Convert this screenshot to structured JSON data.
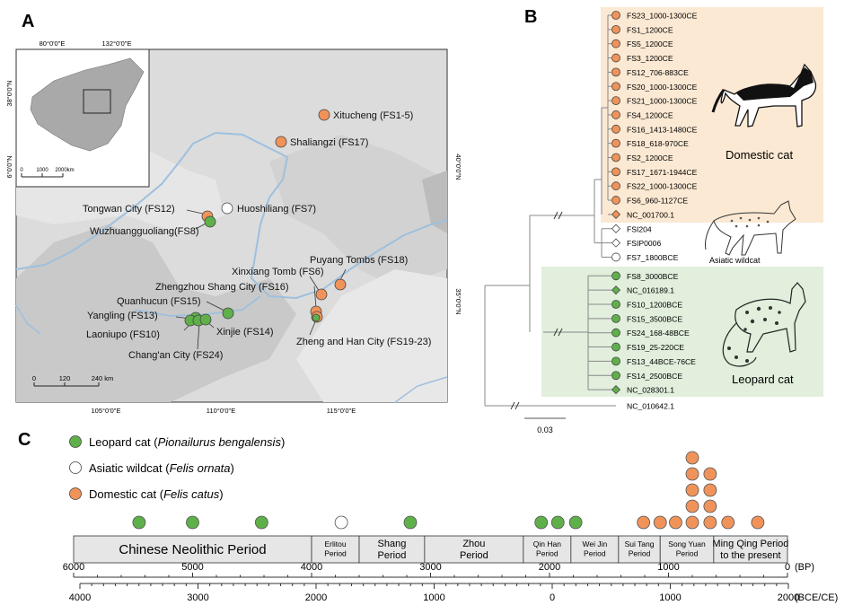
{
  "panels": {
    "a": "A",
    "b": "B",
    "c": "C"
  },
  "map": {
    "inset": {
      "lon_labels": [
        "80°0'0\"E",
        "132°0'0\"E"
      ],
      "lat_labels": [
        "38°0'0\"N",
        "6°0'0\"N"
      ],
      "scale": [
        "0",
        "1000",
        "2000km"
      ]
    },
    "lon_labels": [
      "105°0'0\"E",
      "110°0'0\"E",
      "115°0'0\"E"
    ],
    "lat_labels": [
      "40°0'0\"N",
      "35°0'0\"N"
    ],
    "scale": [
      "0",
      "120",
      "240 km"
    ],
    "sites": [
      {
        "label": "Xitucheng (FS1-5)",
        "type": "domestic"
      },
      {
        "label": "Shaliangzi (FS17)",
        "type": "domestic"
      },
      {
        "label": "Tongwan City (FS12)",
        "type": "domestic"
      },
      {
        "label": "Huoshiliang (FS7)",
        "type": "wildcat"
      },
      {
        "label": "Wuzhuangguoliang(FS8)",
        "type": "leopard"
      },
      {
        "label": "Puyang Tombs (FS18)",
        "type": "domestic"
      },
      {
        "label": "Xinxiang Tomb (FS6)",
        "type": "domestic"
      },
      {
        "label": "Zhengzhou Shang City (FS16)",
        "type": "domestic"
      },
      {
        "label": "Quanhucun (FS15)",
        "type": "leopard"
      },
      {
        "label": "Yangling (FS13)",
        "type": "leopard"
      },
      {
        "label": "Laoniupo (FS10)",
        "type": "leopard"
      },
      {
        "label": "Xinjie (FS14)",
        "type": "leopard"
      },
      {
        "label": "Chang'an City (FS24)",
        "type": "leopard"
      },
      {
        "label": "Zheng and Han City (FS19-23)",
        "type": "domestic"
      }
    ]
  },
  "tree": {
    "tips": [
      {
        "label": "FS23_1000-1300CE",
        "type": "domestic"
      },
      {
        "label": "FS1_1200CE",
        "type": "domestic"
      },
      {
        "label": "FS5_1200CE",
        "type": "domestic"
      },
      {
        "label": "FS3_1200CE",
        "type": "domestic"
      },
      {
        "label": "FS12_706-883CE",
        "type": "domestic"
      },
      {
        "label": "FS20_1000-1300CE",
        "type": "domestic"
      },
      {
        "label": "FS21_1000-1300CE",
        "type": "domestic"
      },
      {
        "label": "FS4_1200CE",
        "type": "domestic"
      },
      {
        "label": "FS16_1413-1480CE",
        "type": "domestic"
      },
      {
        "label": "FS18_618-970CE",
        "type": "domestic"
      },
      {
        "label": "FS2_1200CE",
        "type": "domestic"
      },
      {
        "label": "FS17_1671-1944CE",
        "type": "domestic"
      },
      {
        "label": "FS22_1000-1300CE",
        "type": "domestic"
      },
      {
        "label": "FS6_960-1127CE",
        "type": "domestic"
      },
      {
        "label": "NC_001700.1",
        "type": "domestic-ref"
      },
      {
        "label": "FSI204",
        "type": "wild-ref"
      },
      {
        "label": "FSIP0006",
        "type": "wild-ref"
      },
      {
        "label": "FS7_1800BCE",
        "type": "wildcat"
      },
      {
        "label": "FS8_3000BCE",
        "type": "leopard"
      },
      {
        "label": "NC_016189.1",
        "type": "leopard-ref"
      },
      {
        "label": "FS10_1200BCE",
        "type": "leopard"
      },
      {
        "label": "FS15_3500BCE",
        "type": "leopard"
      },
      {
        "label": "FS24_168-48BCE",
        "type": "leopard"
      },
      {
        "label": "FS19_25-220CE",
        "type": "leopard"
      },
      {
        "label": "FS13_44BCE-76CE",
        "type": "leopard"
      },
      {
        "label": "FS14_2500BCE",
        "type": "leopard"
      },
      {
        "label": "NC_028301.1",
        "type": "leopard-ref"
      },
      {
        "label": "NC_010642.1",
        "type": "none"
      }
    ],
    "group_labels": {
      "domestic": "Domestic cat",
      "wildcat": "Asiatic wildcat",
      "leopard": "Leopard cat"
    },
    "scale_bar": "0.03"
  },
  "legend": [
    {
      "name": "Leopard cat",
      "latin": "Pionailurus bengalensis",
      "color": "#5fb04a"
    },
    {
      "name": "Asiatic wildcat",
      "latin": "Felis ornata",
      "color": "#ffffff"
    },
    {
      "name": "Domestic cat",
      "latin": "Felis catus",
      "color": "#f0935a"
    }
  ],
  "timeline": {
    "periods": [
      {
        "label": "Chinese Neolithic Period",
        "start_bp": 6000,
        "end_bp": 4000
      },
      {
        "label": "Erlitou Period",
        "start_bp": 4000,
        "end_bp": 3600
      },
      {
        "label": "Shang Period",
        "start_bp": 3600,
        "end_bp": 3050
      },
      {
        "label": "Zhou Period",
        "start_bp": 3050,
        "end_bp": 2220
      },
      {
        "label": "Qin Han Period",
        "start_bp": 2220,
        "end_bp": 1820
      },
      {
        "label": "Wei Jin Period",
        "start_bp": 1820,
        "end_bp": 1420
      },
      {
        "label": "Sui Tang Period",
        "start_bp": 1420,
        "end_bp": 1070
      },
      {
        "label": "Song Yuan Period",
        "start_bp": 1070,
        "end_bp": 620
      },
      {
        "label": "Ming Qing Period to the present",
        "start_bp": 620,
        "end_bp": 0
      }
    ],
    "bp_ticks": [
      "6000",
      "5000",
      "4000",
      "3000",
      "2000",
      "1000",
      "0"
    ],
    "bp_unit": "(BP)",
    "cal_ticks": [
      "4000",
      "3000",
      "2000",
      "1000",
      "0",
      "1000",
      "2000"
    ],
    "cal_unit": "(BCE/CE)",
    "samples": [
      {
        "bp": 5450,
        "type": "leopard"
      },
      {
        "bp": 5000,
        "type": "leopard"
      },
      {
        "bp": 4420,
        "type": "leopard"
      },
      {
        "bp": 3750,
        "type": "wildcat"
      },
      {
        "bp": 3170,
        "type": "leopard"
      },
      {
        "bp": 2070,
        "type": "leopard"
      },
      {
        "bp": 1930,
        "type": "leopard"
      },
      {
        "bp": 1780,
        "type": "leopard"
      },
      {
        "bp": 1210,
        "type": "domestic"
      },
      {
        "bp": 1070,
        "type": "domestic"
      },
      {
        "bp": 940,
        "type": "domestic"
      },
      {
        "bp": 800,
        "type": "domestic",
        "stack": 5
      },
      {
        "bp": 650,
        "type": "domestic",
        "stack": 4
      },
      {
        "bp": 500,
        "type": "domestic"
      },
      {
        "bp": 250,
        "type": "domestic"
      }
    ]
  }
}
